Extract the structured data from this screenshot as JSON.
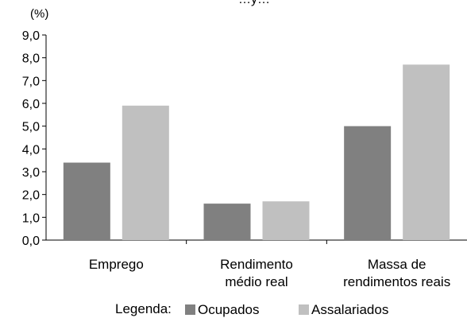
{
  "chart_data": {
    "type": "bar",
    "title": "",
    "title_partial": "…y…",
    "ylabel": "(%)",
    "ylim": [
      0,
      9
    ],
    "yticks": [
      "0,0",
      "1,0",
      "2,0",
      "3,0",
      "4,0",
      "5,0",
      "6,0",
      "7,0",
      "8,0",
      "9,0"
    ],
    "categories": [
      [
        "Emprego"
      ],
      [
        "Rendimento",
        "médio real"
      ],
      [
        "Massa de",
        "rendimentos reais"
      ]
    ],
    "series": [
      {
        "name": "Ocupados",
        "values": [
          3.4,
          1.6,
          5.0
        ],
        "color": "#808080"
      },
      {
        "name": "Assalariados",
        "values": [
          5.9,
          1.7,
          7.7
        ],
        "color": "#c0c0c0"
      }
    ],
    "legend": {
      "label": "Legenda:",
      "placement": "bottom"
    },
    "grid": false
  }
}
